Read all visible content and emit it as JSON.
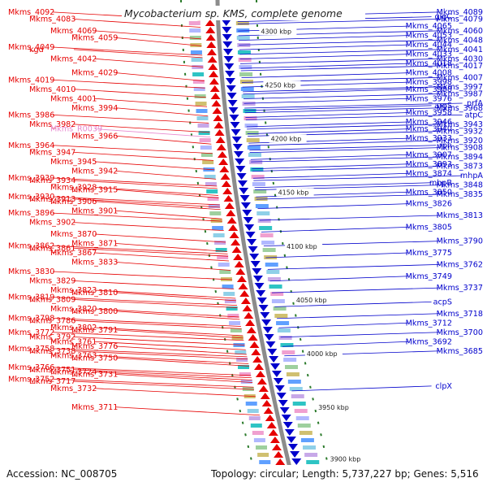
{
  "title": "Mycobacterium sp. KMS, complete genome",
  "footer": {
    "accession": "Accession: NC_008705",
    "summary": "Topology: circular; Length: 5,737,227 bp; Genes: 5,516"
  },
  "colors": {
    "forward": "#e60000",
    "reverse": "#0000cc",
    "rna": "#e88ad0",
    "backbone": "#8c8c8c",
    "tick": "#2a7a2a"
  },
  "scale_ticks": [
    {
      "label": "4300 kbp",
      "frac": 0.03
    },
    {
      "label": "4250 kbp",
      "frac": 0.145
    },
    {
      "label": "4200 kbp",
      "frac": 0.26
    },
    {
      "label": "4150 kbp",
      "frac": 0.375
    },
    {
      "label": "4100 kbp",
      "frac": 0.49
    },
    {
      "label": "4050 kbp",
      "frac": 0.605
    },
    {
      "label": "4000 kbp",
      "frac": 0.72
    },
    {
      "label": "3950 kbp",
      "frac": 0.835
    },
    {
      "label": "3900 kbp",
      "frac": 0.945
    }
  ],
  "left_labels": [
    {
      "text": "Mkms_4092",
      "type": "cds",
      "frac": 0.005
    },
    {
      "text": "Mkms_4083",
      "type": "cds",
      "frac": 0.02
    },
    {
      "text": "Mkms_4069",
      "type": "cds",
      "frac": 0.045
    },
    {
      "text": "Mkms_4059",
      "type": "cds",
      "frac": 0.06
    },
    {
      "text": "Mkms_4049",
      "type": "cds",
      "frac": 0.08
    },
    {
      "text": "kgd",
      "type": "cds",
      "frac": 0.085
    },
    {
      "text": "Mkms_4042",
      "type": "cds",
      "frac": 0.105
    },
    {
      "text": "Mkms_4029",
      "type": "cds",
      "frac": 0.135
    },
    {
      "text": "Mkms_4019",
      "type": "cds",
      "frac": 0.15
    },
    {
      "text": "Mkms_4010",
      "type": "cds",
      "frac": 0.17
    },
    {
      "text": "Mkms_4001",
      "type": "cds",
      "frac": 0.19
    },
    {
      "text": "Mkms_3994",
      "type": "cds",
      "frac": 0.21
    },
    {
      "text": "Mkms_3986",
      "type": "cds",
      "frac": 0.225
    },
    {
      "text": "Mkms_3982",
      "type": "cds",
      "frac": 0.245
    },
    {
      "text": "Mkms_R0039",
      "type": "rna",
      "frac": 0.255
    },
    {
      "text": "Mkms_3966",
      "type": "cds",
      "frac": 0.27
    },
    {
      "text": "Mkms_3964",
      "type": "cds",
      "frac": 0.29
    },
    {
      "text": "Mkms_3947",
      "type": "cds",
      "frac": 0.305
    },
    {
      "text": "Mkms_3945",
      "type": "cds",
      "frac": 0.325
    },
    {
      "text": "Mkms_3942",
      "type": "cds",
      "frac": 0.345
    },
    {
      "text": "Mkms_3939",
      "type": "cds",
      "frac": 0.36
    },
    {
      "text": "Mkms_3934",
      "type": "cds",
      "frac": 0.365
    },
    {
      "text": "Mkms_3928",
      "type": "cds",
      "frac": 0.38
    },
    {
      "text": "Mkms_3915",
      "type": "cds",
      "frac": 0.385
    },
    {
      "text": "Mkms_3930",
      "type": "cds",
      "frac": 0.4
    },
    {
      "text": "Mkms_3913",
      "type": "cds",
      "frac": 0.405
    },
    {
      "text": "Mkms_3906",
      "type": "cds",
      "frac": 0.41
    },
    {
      "text": "Mkms_3901",
      "type": "cds",
      "frac": 0.43
    },
    {
      "text": "Mkms_3896",
      "type": "cds",
      "frac": 0.435
    },
    {
      "text": "Mkms_3902",
      "type": "cds",
      "frac": 0.455
    },
    {
      "text": "Mkms_3870",
      "type": "cds",
      "frac": 0.48
    },
    {
      "text": "Mkms_3871",
      "type": "cds",
      "frac": 0.5
    },
    {
      "text": "Mkms_3862",
      "type": "cds",
      "frac": 0.505
    },
    {
      "text": "Mkms_3861",
      "type": "cds",
      "frac": 0.51
    },
    {
      "text": "Mkms_3867",
      "type": "cds",
      "frac": 0.52
    },
    {
      "text": "Mkms_3833",
      "type": "cds",
      "frac": 0.54
    },
    {
      "text": "Mkms_3830",
      "type": "cds",
      "frac": 0.56
    },
    {
      "text": "Mkms_3829",
      "type": "cds",
      "frac": 0.58
    },
    {
      "text": "Mkms_3823",
      "type": "cds",
      "frac": 0.6
    },
    {
      "text": "Mkms_3810",
      "type": "cds",
      "frac": 0.605
    },
    {
      "text": "Mkms_3819",
      "type": "cds",
      "frac": 0.615
    },
    {
      "text": "Mkms_3809",
      "type": "cds",
      "frac": 0.62
    },
    {
      "text": "Mkms_3820",
      "type": "cds",
      "frac": 0.64
    },
    {
      "text": "Mkms_3800",
      "type": "cds",
      "frac": 0.645
    },
    {
      "text": "Mkms_3798",
      "type": "cds",
      "frac": 0.66
    },
    {
      "text": "Mkms_3786",
      "type": "cds",
      "frac": 0.665
    },
    {
      "text": "Mkms_3802",
      "type": "cds",
      "frac": 0.68
    },
    {
      "text": "Mkms_3791",
      "type": "cds",
      "frac": 0.685
    },
    {
      "text": "Mkms_3772",
      "type": "cds",
      "frac": 0.69
    },
    {
      "text": "Mkms_3792",
      "type": "cds",
      "frac": 0.7
    },
    {
      "text": "Mkms_3761",
      "type": "cds",
      "frac": 0.71
    },
    {
      "text": "Mkms_3776",
      "type": "cds",
      "frac": 0.72
    },
    {
      "text": "Mkms_3758",
      "type": "cds",
      "frac": 0.725
    },
    {
      "text": "Mkms_3738",
      "type": "cds",
      "frac": 0.73
    },
    {
      "text": "Mkms_3763",
      "type": "cds",
      "frac": 0.74
    },
    {
      "text": "Mkms_3750",
      "type": "cds",
      "frac": 0.745
    },
    {
      "text": "Mkms_3766",
      "type": "cds",
      "frac": 0.765
    },
    {
      "text": "Mkms_3751",
      "type": "cds",
      "frac": 0.77
    },
    {
      "text": "Mkms_3724",
      "type": "cds",
      "frac": 0.775
    },
    {
      "text": "Mkms_3731",
      "type": "cds",
      "frac": 0.78
    },
    {
      "text": "Mkms_3752",
      "type": "cds",
      "frac": 0.79
    },
    {
      "text": "Mkms_3717",
      "type": "cds",
      "frac": 0.795
    },
    {
      "text": "Mkms_3732",
      "type": "cds",
      "frac": 0.81
    },
    {
      "text": "Mkms_3711",
      "type": "cds",
      "frac": 0.85
    }
  ],
  "right_labels": [
    {
      "text": "Mkms_4089",
      "frac": 0.005
    },
    {
      "text": "glgC",
      "frac": 0.015
    },
    {
      "text": "Mkms_4079",
      "frac": 0.02
    },
    {
      "text": "Mkms_4065",
      "frac": 0.035
    },
    {
      "text": "Mkms_4060",
      "frac": 0.045
    },
    {
      "text": "Mkms_4053",
      "frac": 0.055
    },
    {
      "text": "Mkms_4048",
      "frac": 0.065
    },
    {
      "text": "Mkms_4044",
      "frac": 0.075
    },
    {
      "text": "Mkms_4041",
      "frac": 0.085
    },
    {
      "text": "Mkms_4033",
      "frac": 0.095
    },
    {
      "text": "Mkms_4030",
      "frac": 0.105
    },
    {
      "text": "Mkms_4018",
      "frac": 0.115
    },
    {
      "text": "Mkms_4017",
      "frac": 0.12
    },
    {
      "text": "Mkms_4008",
      "frac": 0.135
    },
    {
      "text": "Mkms_4007",
      "frac": 0.145
    },
    {
      "text": "Mkms_3998",
      "frac": 0.155
    },
    {
      "text": "Mkms_3997",
      "frac": 0.165
    },
    {
      "text": "Mkms_3988",
      "frac": 0.17
    },
    {
      "text": "Mkms_3987",
      "frac": 0.18
    },
    {
      "text": "Mkms_3976",
      "frac": 0.19
    },
    {
      "text": "prfA",
      "frac": 0.2
    },
    {
      "text": "argS",
      "frac": 0.205
    },
    {
      "text": "Mkms_3968",
      "frac": 0.21
    },
    {
      "text": "Mkms_3958",
      "frac": 0.22
    },
    {
      "text": "atpC",
      "frac": 0.225
    },
    {
      "text": "Mkms_3946",
      "frac": 0.24
    },
    {
      "text": "Mkms_3943",
      "frac": 0.245
    },
    {
      "text": "Mkms_3940",
      "frac": 0.255
    },
    {
      "text": "Mkms_3932",
      "frac": 0.26
    },
    {
      "text": "Mkms_3933",
      "frac": 0.275
    },
    {
      "text": "Mkms_3920",
      "frac": 0.28
    },
    {
      "text": "rph",
      "frac": 0.29
    },
    {
      "text": "Mkms_3908",
      "frac": 0.295
    },
    {
      "text": "Mkms_3907",
      "frac": 0.31
    },
    {
      "text": "Mkms_3894",
      "frac": 0.315
    },
    {
      "text": "Mkms_3893",
      "frac": 0.33
    },
    {
      "text": "Mkms_3873",
      "frac": 0.335
    },
    {
      "text": "Mkms_3874",
      "frac": 0.35
    },
    {
      "text": "mhpA",
      "frac": 0.355
    },
    {
      "text": "mhpB",
      "frac": 0.37
    },
    {
      "text": "Mkms_3848",
      "frac": 0.375
    },
    {
      "text": "Mkms_3850",
      "frac": 0.39
    },
    {
      "text": "Mkms_3835",
      "frac": 0.395
    },
    {
      "text": "Mkms_3826",
      "frac": 0.415
    },
    {
      "text": "Mkms_3813",
      "frac": 0.44
    },
    {
      "text": "Mkms_3805",
      "frac": 0.465
    },
    {
      "text": "Mkms_3790",
      "frac": 0.495
    },
    {
      "text": "Mkms_3775",
      "frac": 0.52
    },
    {
      "text": "Mkms_3762",
      "frac": 0.545
    },
    {
      "text": "Mkms_3749",
      "frac": 0.57
    },
    {
      "text": "Mkms_3737",
      "frac": 0.595
    },
    {
      "text": "acpS",
      "frac": 0.625
    },
    {
      "text": "Mkms_3718",
      "frac": 0.65
    },
    {
      "text": "Mkms_3712",
      "frac": 0.67
    },
    {
      "text": "Mkms_3700",
      "frac": 0.69
    },
    {
      "text": "Mkms_3692",
      "frac": 0.71
    },
    {
      "text": "Mkms_3685",
      "frac": 0.73
    },
    {
      "text": "clpX",
      "frac": 0.805
    }
  ]
}
